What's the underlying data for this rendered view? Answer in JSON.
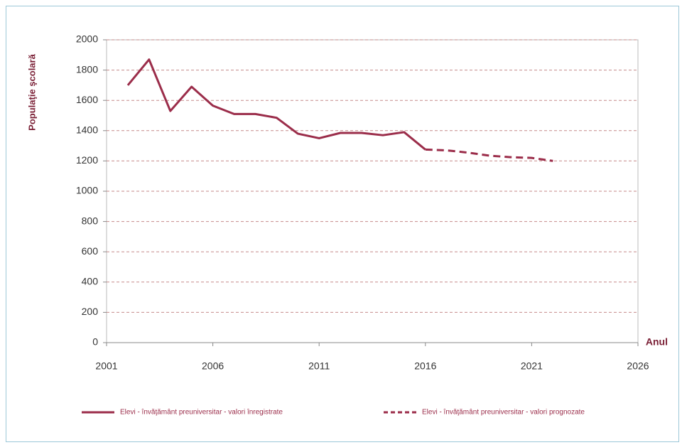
{
  "chart_data": {
    "type": "line",
    "y_label": "Populaţie şcolară",
    "x_label": "Anul",
    "x": [
      2002,
      2003,
      2004,
      2005,
      2006,
      2007,
      2008,
      2009,
      2010,
      2011,
      2012,
      2013,
      2014,
      2015,
      2016,
      2017,
      2018,
      2019,
      2020,
      2021,
      2022
    ],
    "series": [
      {
        "name": "Elevi - învăţământ preuniversitar - valori înregistrate",
        "color": "#9b2d4a",
        "dashed": false,
        "values": [
          1700,
          1870,
          1530,
          1690,
          1565,
          1510,
          1510,
          1485,
          1380,
          1350,
          1385,
          1385,
          1370,
          1390,
          1275,
          null,
          null,
          null,
          null,
          null,
          null
        ]
      },
      {
        "name": "Elevi - învăţământ preuniversitar - valori prognozate",
        "color": "#9b2d4a",
        "dashed": true,
        "values": [
          null,
          null,
          null,
          null,
          null,
          null,
          null,
          null,
          null,
          null,
          null,
          null,
          null,
          null,
          1275,
          1270,
          1255,
          1235,
          1225,
          1220,
          1200
        ]
      }
    ],
    "xlim": [
      2001,
      2026
    ],
    "xticks": [
      2001,
      2006,
      2011,
      2016,
      2021,
      2026
    ],
    "ylim": [
      0,
      2000
    ],
    "yticks": [
      0,
      200,
      400,
      600,
      800,
      1000,
      1200,
      1400,
      1600,
      1800,
      2000
    ],
    "grid": true
  }
}
